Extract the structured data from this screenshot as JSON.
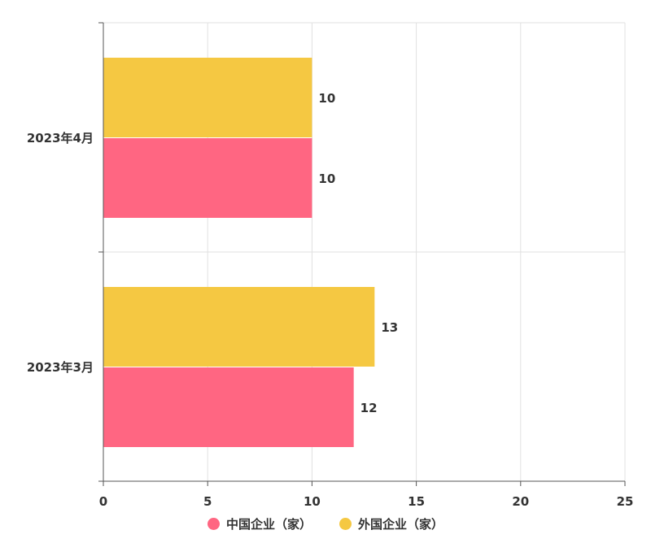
{
  "chart_data": {
    "type": "bar",
    "orientation": "horizontal",
    "categories": [
      "2023年3月",
      "2023年4月"
    ],
    "series": [
      {
        "name": "中国企业（家）",
        "values": [
          12,
          10
        ],
        "color": "#ff6682"
      },
      {
        "name": "外国企业（家）",
        "values": [
          13,
          10
        ],
        "color": "#f5c842"
      }
    ],
    "xlim": [
      0,
      25
    ],
    "xticks": [
      0,
      5,
      10,
      15,
      20,
      25
    ],
    "grid": true,
    "legend_position": "bottom",
    "data_labels": true
  }
}
